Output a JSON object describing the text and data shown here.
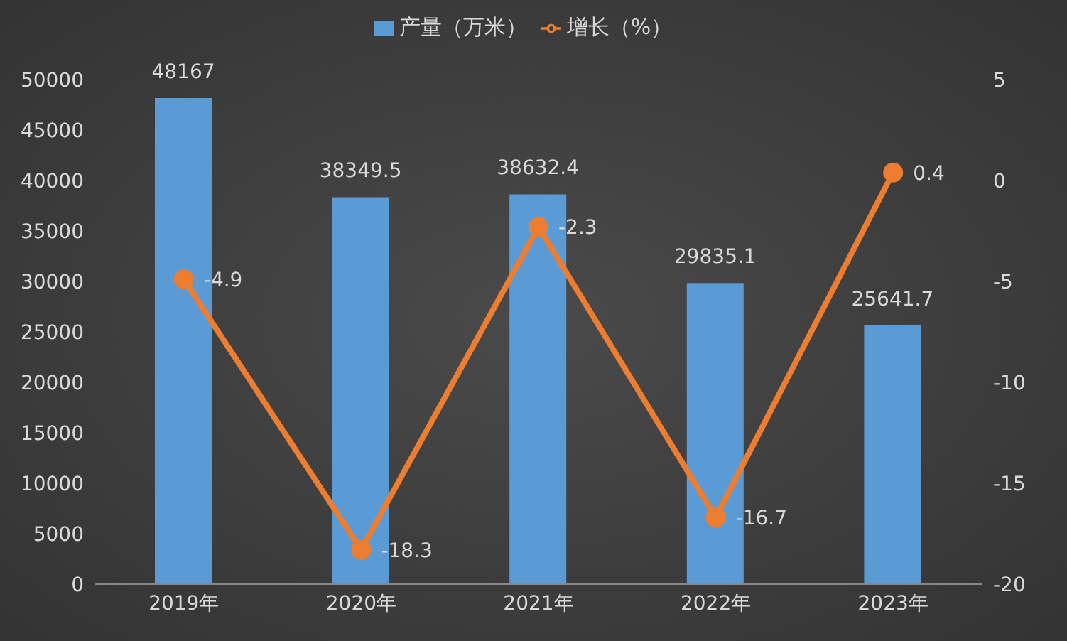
{
  "chart_data": {
    "type": "bar",
    "categories": [
      "2019年",
      "2020年",
      "2021年",
      "2022年",
      "2023年"
    ],
    "series": [
      {
        "name": "产量（万米）",
        "color": "#5b9bd5",
        "values": [
          48167,
          38349.5,
          38632.4,
          29835.1,
          25641.7
        ]
      },
      {
        "name": "增长（%）",
        "type": "line",
        "axis": "y2",
        "color": "#ed7d31",
        "values": [
          -4.9,
          -18.3,
          -2.3,
          -16.7,
          0.4
        ]
      }
    ],
    "ylim": [
      0,
      50000
    ],
    "yticks": [
      0,
      5000,
      10000,
      15000,
      20000,
      25000,
      30000,
      35000,
      40000,
      45000,
      50000
    ],
    "y2lim": [
      -20,
      5
    ],
    "y2ticks": [
      -20,
      -15,
      -10,
      -5,
      0,
      5
    ],
    "legend": "top",
    "data_labels": true,
    "marker": "circle",
    "grid": false
  }
}
